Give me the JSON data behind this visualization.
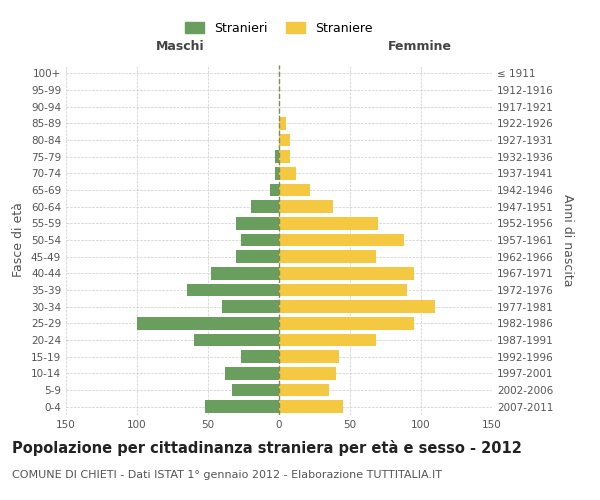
{
  "age_groups": [
    "0-4",
    "5-9",
    "10-14",
    "15-19",
    "20-24",
    "25-29",
    "30-34",
    "35-39",
    "40-44",
    "45-49",
    "50-54",
    "55-59",
    "60-64",
    "65-69",
    "70-74",
    "75-79",
    "80-84",
    "85-89",
    "90-94",
    "95-99",
    "100+"
  ],
  "birth_years": [
    "2007-2011",
    "2002-2006",
    "1997-2001",
    "1992-1996",
    "1987-1991",
    "1982-1986",
    "1977-1981",
    "1972-1976",
    "1967-1971",
    "1962-1966",
    "1957-1961",
    "1952-1956",
    "1947-1951",
    "1942-1946",
    "1937-1941",
    "1932-1936",
    "1927-1931",
    "1922-1926",
    "1917-1921",
    "1912-1916",
    "≤ 1911"
  ],
  "maschi": [
    52,
    33,
    38,
    27,
    60,
    100,
    40,
    65,
    48,
    30,
    27,
    30,
    20,
    6,
    3,
    3,
    0,
    0,
    0,
    0,
    0
  ],
  "femmine": [
    45,
    35,
    40,
    42,
    68,
    95,
    110,
    90,
    95,
    68,
    88,
    70,
    38,
    22,
    12,
    8,
    8,
    5,
    0,
    0,
    0
  ],
  "maschi_color": "#6a9e5e",
  "femmine_color": "#f5c842",
  "background_color": "#ffffff",
  "grid_color": "#cccccc",
  "center_line_color": "#888855",
  "xlim": 150,
  "title": "Popolazione per cittadinanza straniera per età e sesso - 2012",
  "subtitle": "COMUNE DI CHIETI - Dati ISTAT 1° gennaio 2012 - Elaborazione TUTTITALIA.IT",
  "xlabel_left": "Maschi",
  "xlabel_right": "Femmine",
  "ylabel_left": "Fasce di età",
  "ylabel_right": "Anni di nascita",
  "legend_maschi": "Stranieri",
  "legend_femmine": "Straniere",
  "title_fontsize": 10.5,
  "subtitle_fontsize": 8,
  "tick_fontsize": 7.5,
  "label_fontsize": 9
}
